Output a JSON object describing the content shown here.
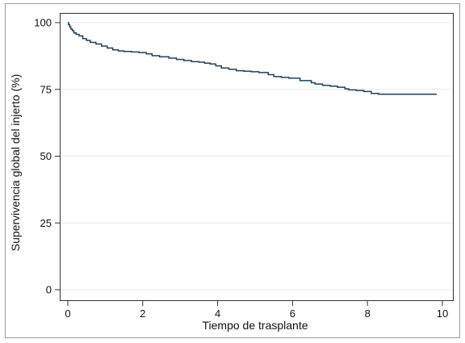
{
  "chart_data": {
    "type": "line",
    "step": true,
    "xlabel": "Tiempo de trasplante",
    "ylabel": "Supervivencia global del injerto (%)",
    "xlim": [
      0,
      10
    ],
    "ylim": [
      0,
      100
    ],
    "xticks": [
      0,
      2,
      4,
      6,
      8,
      10
    ],
    "yticks": [
      0,
      25,
      50,
      75,
      100
    ],
    "grid": "horizontal",
    "legend": "none",
    "line_color": "#1f3f5c",
    "grid_color": "#eaeaea",
    "series": [
      {
        "x": [
          0,
          0.02,
          0.05,
          0.08,
          0.12,
          0.16,
          0.22,
          0.3,
          0.4,
          0.5,
          0.6,
          0.75,
          0.9,
          1.05,
          1.2,
          1.35,
          1.5,
          1.7,
          1.9,
          2.1,
          2.25,
          2.45,
          2.7,
          2.9,
          3.1,
          3.3,
          3.5,
          3.65,
          3.8,
          3.95,
          4.1,
          4.3,
          4.5,
          4.7,
          4.9,
          5.1,
          5.35,
          5.5,
          5.7,
          5.9,
          6.2,
          6.5,
          6.6,
          6.8,
          7.0,
          7.2,
          7.4,
          7.5,
          7.7,
          7.9,
          8.1,
          8.3,
          8.5,
          8.8,
          9.2,
          9.6,
          9.85
        ],
        "y": [
          100,
          99.2,
          98.4,
          97.6,
          97,
          96.2,
          95.6,
          95,
          94,
          93.3,
          92.6,
          92,
          91.2,
          90.5,
          89.8,
          89.4,
          89.2,
          89,
          88.8,
          88.3,
          87.6,
          87.2,
          86.7,
          86.2,
          85.8,
          85.4,
          85.2,
          84.8,
          84.5,
          83.8,
          83,
          82.5,
          82,
          81.8,
          81.6,
          81.3,
          80.5,
          79.8,
          79.5,
          79.2,
          78.3,
          77.5,
          77,
          76.5,
          76.2,
          75.8,
          75.2,
          74.8,
          74.6,
          74.2,
          73.5,
          73.2,
          73.2,
          73.2,
          73.2,
          73.2,
          73.2
        ]
      }
    ]
  }
}
